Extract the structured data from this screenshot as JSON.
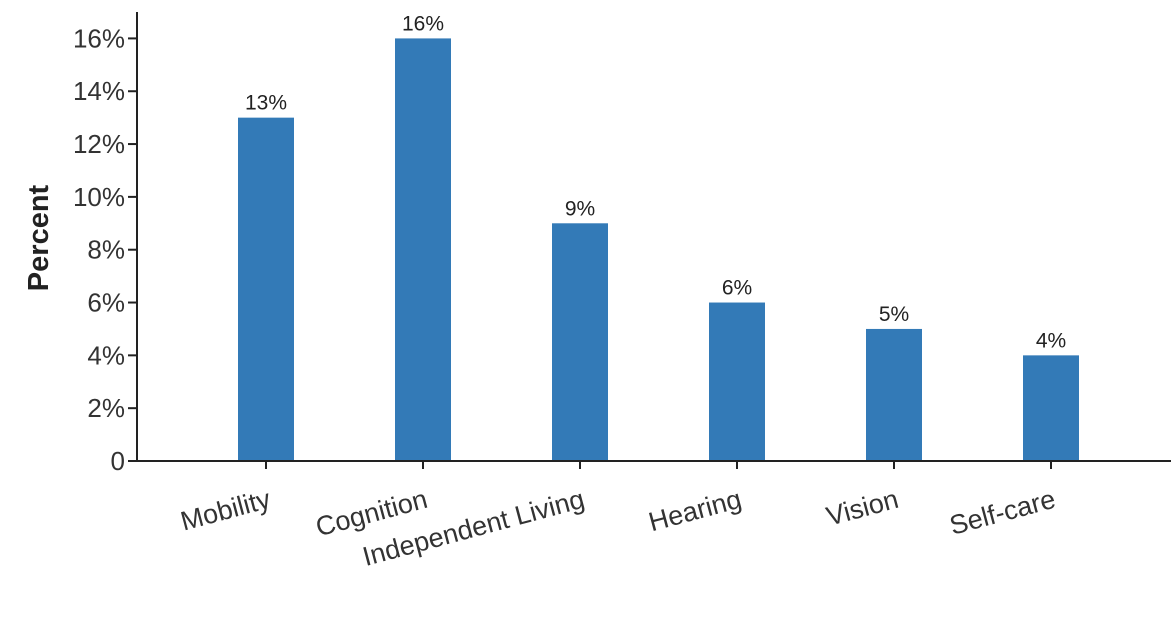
{
  "chart_data": {
    "type": "bar",
    "categories": [
      "Mobility",
      "Cognition",
      "Independent Living",
      "Hearing",
      "Vision",
      "Self-care"
    ],
    "values": [
      13,
      16,
      9,
      6,
      5,
      4
    ],
    "data_labels": [
      "13%",
      "16%",
      "9%",
      "6%",
      "5%",
      "4%"
    ],
    "title": "",
    "xlabel": "",
    "ylabel": "Percent",
    "ylim": [
      0,
      17
    ],
    "y_ticks": [
      0,
      2,
      4,
      6,
      8,
      10,
      12,
      14,
      16
    ],
    "y_tick_labels": [
      "0",
      "2%",
      "4%",
      "6%",
      "8%",
      "10%",
      "12%",
      "14%",
      "16%"
    ],
    "grid": false,
    "legend": "none",
    "bar_color": "#337ab7"
  }
}
